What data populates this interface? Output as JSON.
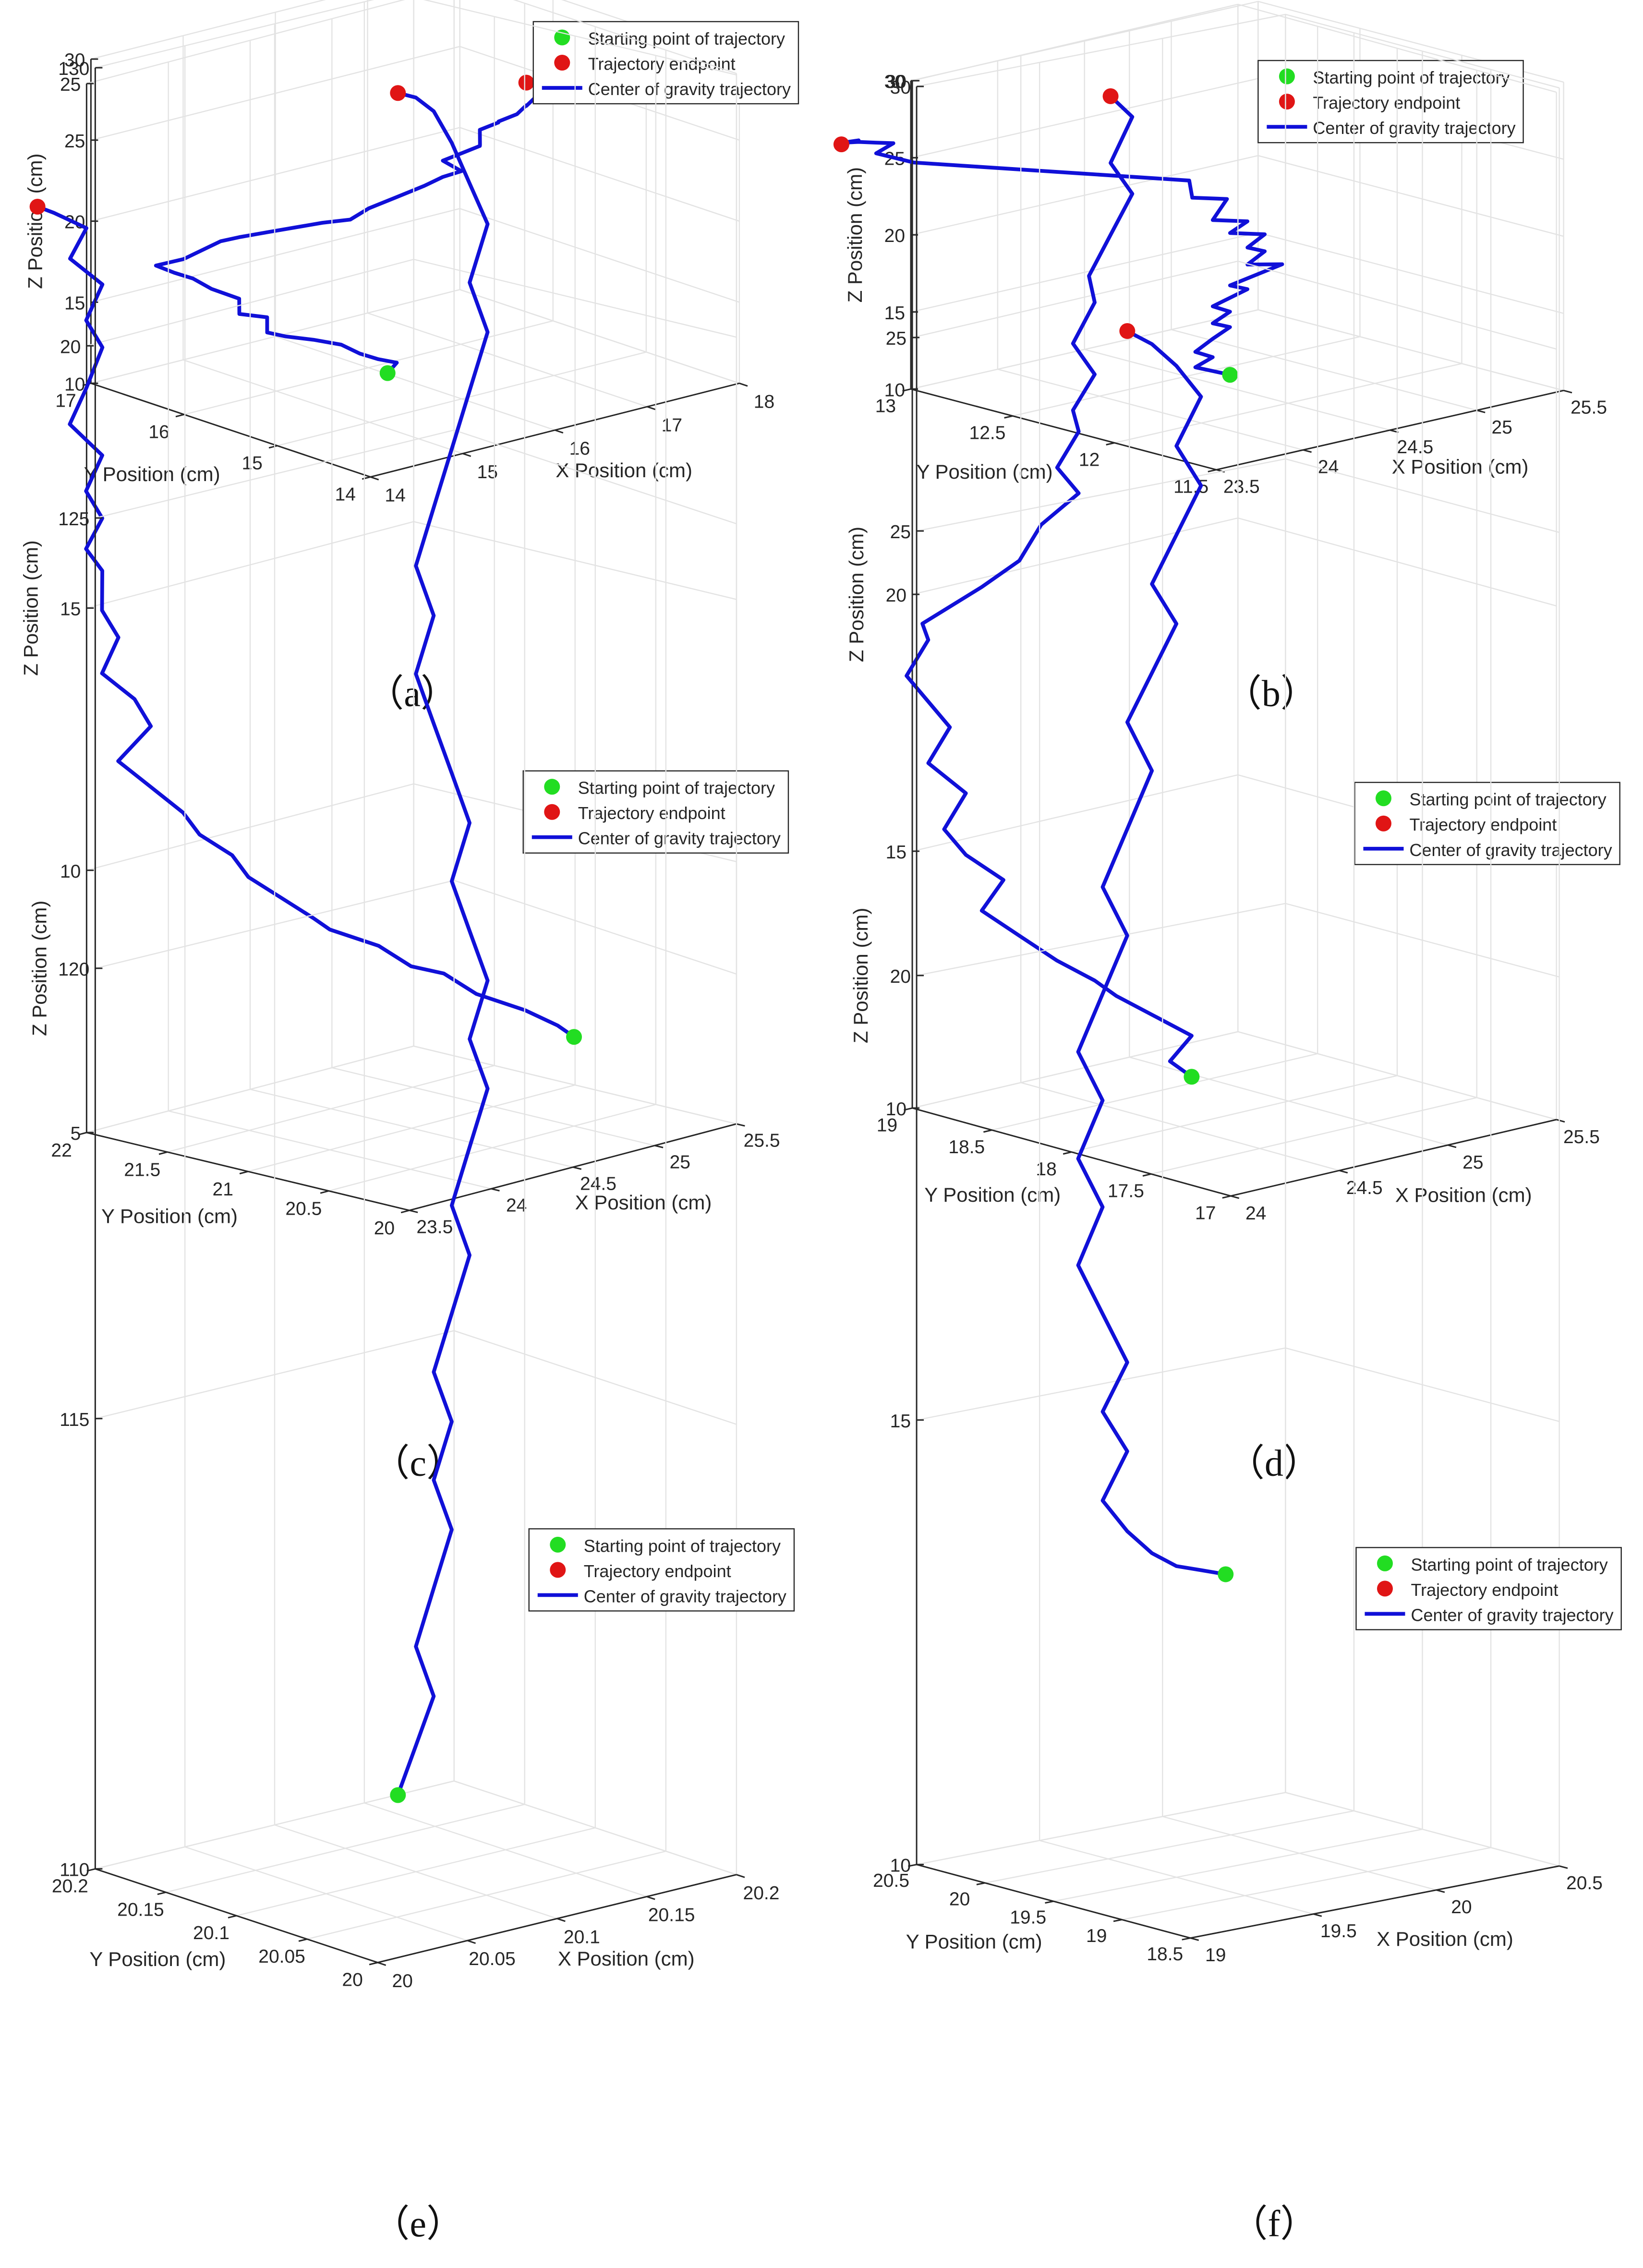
{
  "figure": {
    "colors": {
      "line": "#1010d8",
      "start": "#22dd22",
      "end": "#e01515",
      "axis": "#262626",
      "grid": "#e3e3e3"
    },
    "legend": {
      "start": "Starting point of trajectory",
      "end": "Trajectory endpoint",
      "line": "Center of gravity trajectory",
      "placement": "top-right"
    }
  },
  "chart_data": [
    {
      "type": "line3d",
      "caption": "（a）",
      "xlabel": "X Position (cm)",
      "ylabel": "Y Position (cm)",
      "zlabel": "Z Position (cm)",
      "xlim": [
        14,
        18
      ],
      "ylim": [
        14,
        17
      ],
      "zlim": [
        10,
        30
      ],
      "xticks": [
        "14",
        "15",
        "16",
        "17",
        "18"
      ],
      "yticks": [
        "14",
        "15",
        "16",
        "17"
      ],
      "zticks": [
        "10",
        "15",
        "20",
        "25",
        "30"
      ],
      "series": [
        {
          "name": "Center of gravity trajectory",
          "x": [
            15.6,
            15.7,
            15.5,
            15.4,
            15.3,
            15.1,
            14.9,
            14.8,
            14.9,
            14.7,
            14.8,
            14.6,
            14.5,
            14.4,
            14.3,
            14.5,
            14.6,
            14.7,
            14.8,
            15.0,
            15.2,
            15.4,
            15.6,
            15.8,
            16.0,
            16.2,
            16.3,
            16.4,
            16.3,
            16.4,
            16.5,
            16.4,
            16.5,
            16.6,
            16.5,
            16.6,
            16.7,
            16.6,
            16.7,
            16.8,
            16.7
          ],
          "y": [
            15.4,
            15.4,
            15.4,
            15.5,
            15.6,
            15.7,
            15.8,
            15.9,
            16.0,
            16.1,
            16.2,
            16.3,
            16.4,
            16.5,
            16.6,
            16.5,
            16.4,
            16.3,
            16.2,
            16.1,
            16.0,
            15.9,
            15.8,
            15.8,
            15.7,
            15.6,
            15.5,
            15.4,
            15.5,
            15.4,
            15.3,
            15.2,
            15.3,
            15.2,
            15.1,
            15.0,
            15.0,
            14.9,
            14.9,
            15.0,
            15.0
          ],
          "z": [
            11.4,
            11.9,
            12.4,
            12.7,
            13.2,
            13.6,
            13.9,
            14.1,
            14.7,
            15.0,
            15.6,
            16.3,
            16.9,
            17.2,
            17.6,
            17.9,
            18.5,
            19.1,
            19.4,
            19.6,
            19.8,
            20.0,
            20.1,
            20.5,
            21.1,
            21.7,
            22.3,
            22.7,
            23.3,
            23.8,
            24.3,
            24.7,
            25.3,
            25.8,
            26.2,
            26.7,
            27.1,
            27.4,
            27.8,
            28.1,
            28.5
          ]
        }
      ],
      "start": {
        "x": 15.6,
        "y": 15.4,
        "z": 11.4
      },
      "end": {
        "x": 16.7,
        "y": 15.0,
        "z": 28.5
      }
    },
    {
      "type": "line3d",
      "caption": "（b）",
      "xlabel": "X Position (cm)",
      "ylabel": "Y Position (cm)",
      "zlabel": "Z Position (cm)",
      "xlim": [
        23.5,
        25.5
      ],
      "ylim": [
        11.5,
        13
      ],
      "zlim": [
        10,
        30
      ],
      "xticks": [
        "23.5",
        "24",
        "24.5",
        "25",
        "25.5"
      ],
      "yticks": [
        "11.5",
        "12",
        "12.5",
        "13"
      ],
      "zticks": [
        "10",
        "15",
        "20",
        "25",
        "30"
      ],
      "series": [
        {
          "name": "Center of gravity trajectory",
          "x": [
            24.4,
            24.3,
            24.2,
            24.3,
            24.2,
            24.3,
            24.4,
            24.3,
            24.4,
            24.3,
            24.5,
            24.4,
            24.7,
            24.5,
            24.6,
            24.5,
            24.6,
            24.4,
            24.5,
            24.3,
            24.5,
            24.3,
            24.4,
            24.2,
            24.0,
            23.8,
            23.6,
            23.4,
            23.3,
            23.4,
            23.3,
            23.2,
            23.1,
            23.2,
            23.1
          ],
          "y": [
            12.2,
            12.2,
            12.2,
            12.2,
            12.2,
            12.2,
            12.2,
            12.2,
            12.2,
            12.2,
            12.2,
            12.2,
            12.2,
            12.2,
            12.2,
            12.2,
            12.2,
            12.2,
            12.2,
            12.2,
            12.3,
            12.3,
            12.4,
            12.5,
            12.6,
            12.7,
            12.8,
            12.9,
            13.0,
            13.0,
            13.0,
            13.0,
            13.0,
            13.0,
            13.0
          ],
          "z": [
            11.4,
            11.9,
            12.4,
            12.8,
            13.4,
            14.0,
            14.5,
            15.0,
            15.5,
            16.1,
            16.7,
            17.2,
            17.8,
            18.3,
            18.9,
            19.4,
            20.0,
            20.6,
            21.1,
            21.7,
            22.2,
            22.8,
            23.3,
            23.7,
            24.1,
            24.5,
            24.9,
            25.3,
            25.8,
            26.2,
            26.5,
            26.8,
            27.0,
            26.9,
            26.9
          ]
        }
      ],
      "start": {
        "x": 24.4,
        "y": 12.2,
        "z": 11.4
      },
      "end": {
        "x": 23.1,
        "y": 13.0,
        "z": 26.9
      }
    },
    {
      "type": "line3d",
      "caption": "（c）",
      "xlabel": "X Position (cm)",
      "ylabel": "Y Position (cm)",
      "zlabel": "Z Position (cm)",
      "xlim": [
        23.5,
        25.5
      ],
      "ylim": [
        20,
        22
      ],
      "zlim": [
        5,
        25
      ],
      "xticks": [
        "23.5",
        "24",
        "24.5",
        "25",
        "25.5"
      ],
      "yticks": [
        "20",
        "20.5",
        "21",
        "21.5",
        "22"
      ],
      "zticks": [
        "5",
        "10",
        "15",
        "20",
        "25"
      ],
      "series": [
        {
          "name": "Center of gravity trajectory",
          "x": [
            25.0,
            24.9,
            24.8,
            24.6,
            24.5,
            24.3,
            24.2,
            24.0,
            23.9,
            23.8,
            23.7,
            23.6,
            23.5,
            23.4,
            23.3,
            23.2,
            23.4,
            23.3,
            23.2,
            23.3,
            23.2,
            23.3,
            23.2,
            23.3,
            23.2,
            23.3,
            23.2,
            23.3,
            23.4,
            23.3,
            23.4,
            23.3,
            23.4,
            23.3,
            23.2
          ],
          "y": [
            20.5,
            20.5,
            20.6,
            20.7,
            20.8,
            20.8,
            20.9,
            21.0,
            21.0,
            21.1,
            21.2,
            21.2,
            21.3,
            21.3,
            21.4,
            21.5,
            21.5,
            21.5,
            21.6,
            21.6,
            21.6,
            21.7,
            21.7,
            21.7,
            21.7,
            21.7,
            21.8,
            21.8,
            21.8,
            21.8,
            21.8,
            21.9,
            21.9,
            22.0,
            22.0
          ],
          "z": [
            6.7,
            7.0,
            7.3,
            7.7,
            8.1,
            8.4,
            8.8,
            9.2,
            9.5,
            9.9,
            10.3,
            10.8,
            11.2,
            11.7,
            12.2,
            12.7,
            13.2,
            13.8,
            14.3,
            14.9,
            15.5,
            16.1,
            16.6,
            17.1,
            17.7,
            18.3,
            18.9,
            19.5,
            20.2,
            20.8,
            21.4,
            21.9,
            22.4,
            22.7,
            22.9
          ]
        }
      ],
      "start": {
        "x": 25.0,
        "y": 20.5,
        "z": 6.7
      },
      "end": {
        "x": 23.2,
        "y": 22.0,
        "z": 22.9
      }
    },
    {
      "type": "line3d",
      "caption": "（d）",
      "xlabel": "X Position (cm)",
      "ylabel": "Y Position (cm)",
      "zlabel": "Z Position (cm)",
      "xlim": [
        24,
        25.5
      ],
      "ylim": [
        17,
        19
      ],
      "zlim": [
        10,
        30
      ],
      "xticks": [
        "24",
        "24.5",
        "25",
        "25.5"
      ],
      "yticks": [
        "17",
        "17.5",
        "18",
        "18.5",
        "19"
      ],
      "zticks": [
        "10",
        "15",
        "20",
        "25",
        "30"
      ],
      "series": [
        {
          "name": "Center of gravity trajectory",
          "x": [
            24.7,
            24.6,
            24.7,
            24.6,
            24.5,
            24.4,
            24.3,
            24.2,
            24.1,
            24.2,
            24.1,
            24.0,
            24.1,
            24.0,
            24.1,
            24.0,
            23.9,
            24.0,
            23.9,
            24.1,
            24.2,
            24.3,
            24.4,
            24.3,
            24.4,
            24.3,
            24.4,
            24.3,
            24.4,
            24.3,
            24.4,
            24.5,
            24.4,
            24.5,
            24.4
          ],
          "y": [
            18.2,
            18.2,
            18.2,
            18.3,
            18.4,
            18.4,
            18.5,
            18.6,
            18.7,
            18.7,
            18.8,
            18.8,
            18.8,
            18.9,
            18.9,
            18.9,
            18.9,
            18.9,
            18.8,
            18.7,
            18.6,
            18.6,
            18.5,
            18.5,
            18.5,
            18.4,
            18.4,
            18.4,
            18.4,
            18.3,
            18.3,
            18.3,
            18.3,
            18.3,
            18.3
          ],
          "z": [
            10.6,
            11.0,
            11.4,
            11.8,
            12.2,
            12.6,
            13.0,
            13.5,
            14.0,
            14.5,
            15.0,
            15.6,
            16.2,
            16.8,
            17.4,
            18.0,
            18.6,
            19.2,
            19.7,
            20.3,
            20.8,
            21.4,
            22.0,
            22.6,
            23.2,
            23.8,
            24.4,
            25.1,
            25.8,
            26.5,
            27.2,
            27.9,
            28.6,
            29.4,
            29.9
          ]
        }
      ],
      "start": {
        "x": 24.7,
        "y": 18.2,
        "z": 10.6
      },
      "end": {
        "x": 24.4,
        "y": 18.3,
        "z": 29.9
      }
    },
    {
      "type": "line3d",
      "caption": "（e）",
      "xlabel": "X Position (cm)",
      "ylabel": "Y Position (cm)",
      "zlabel": "Z Position (cm)",
      "xlim": [
        20,
        20.2
      ],
      "ylim": [
        20,
        20.2
      ],
      "zlim": [
        110,
        130
      ],
      "xticks": [
        "20",
        "20.05",
        "20.1",
        "20.15",
        "20.2"
      ],
      "yticks": [
        "20",
        "20.05",
        "20.1",
        "20.15",
        "20.2"
      ],
      "zticks": [
        "110",
        "115",
        "120",
        "125",
        "130"
      ],
      "series": [
        {
          "name": "Center of gravity trajectory",
          "x": [
            20.09,
            20.1,
            20.11,
            20.1,
            20.11,
            20.12,
            20.11,
            20.12,
            20.11,
            20.12,
            20.13,
            20.12,
            20.13,
            20.14,
            20.13,
            20.14,
            20.13,
            20.12,
            20.13,
            20.12,
            20.11,
            20.1,
            20.11,
            20.1,
            20.11,
            20.12,
            20.13,
            20.14,
            20.13,
            20.14,
            20.13,
            20.12,
            20.11,
            20.1,
            20.09
          ],
          "y": [
            20.1,
            20.1,
            20.1,
            20.1,
            20.1,
            20.1,
            20.1,
            20.1,
            20.1,
            20.1,
            20.1,
            20.1,
            20.1,
            20.1,
            20.1,
            20.1,
            20.1,
            20.1,
            20.1,
            20.1,
            20.1,
            20.1,
            20.1,
            20.1,
            20.1,
            20.1,
            20.1,
            20.1,
            20.1,
            20.1,
            20.1,
            20.1,
            20.1,
            20.1,
            20.1
          ],
          "z": [
            110.9,
            111.4,
            111.9,
            112.5,
            113.1,
            113.7,
            114.3,
            114.9,
            115.5,
            116.1,
            116.7,
            117.3,
            117.9,
            118.5,
            119.1,
            119.7,
            120.3,
            120.9,
            121.5,
            122.1,
            122.7,
            123.3,
            123.9,
            124.5,
            125.1,
            125.7,
            126.3,
            126.9,
            127.5,
            128.1,
            128.6,
            129.1,
            129.5,
            129.7,
            129.8
          ]
        }
      ],
      "start": {
        "x": 20.09,
        "y": 20.1,
        "z": 110.9
      },
      "end": {
        "x": 20.09,
        "y": 20.1,
        "z": 129.8
      }
    },
    {
      "type": "line3d",
      "caption": "（f）",
      "xlabel": "X Position (cm)",
      "ylabel": "Y Position (cm)",
      "zlabel": "Z Position (cm)",
      "xlim": [
        19,
        20.5
      ],
      "ylim": [
        18.5,
        20.5
      ],
      "zlim": [
        10,
        30
      ],
      "xticks": [
        "19",
        "19.5",
        "20",
        "20.5"
      ],
      "yticks": [
        "18.5",
        "19",
        "19.5",
        "20",
        "20.5"
      ],
      "zticks": [
        "10",
        "15",
        "20",
        "25",
        "30"
      ],
      "series": [
        {
          "name": "Center of gravity trajectory",
          "x": [
            19.7,
            19.6,
            19.5,
            19.4,
            19.3,
            19.2,
            19.3,
            19.2,
            19.3,
            19.2,
            19.1,
            19.2,
            19.1,
            19.2,
            19.1,
            19.2,
            19.3,
            19.2,
            19.3,
            19.4,
            19.3,
            19.4,
            19.5,
            19.4,
            19.5,
            19.6,
            19.5,
            19.6,
            19.5,
            19.4,
            19.3
          ],
          "y": [
            19.5,
            19.5,
            19.5,
            19.5,
            19.5,
            19.5,
            19.5,
            19.5,
            19.5,
            19.5,
            19.5,
            19.5,
            19.5,
            19.5,
            19.5,
            19.5,
            19.5,
            19.5,
            19.5,
            19.5,
            19.5,
            19.5,
            19.5,
            19.5,
            19.5,
            19.5,
            19.5,
            19.5,
            19.5,
            19.5,
            19.5
          ],
          "z": [
            13.3,
            13.4,
            13.5,
            13.7,
            14.0,
            14.4,
            14.9,
            15.4,
            15.9,
            16.5,
            17.1,
            17.7,
            18.3,
            18.9,
            19.5,
            20.1,
            20.7,
            21.3,
            21.9,
            22.5,
            23.1,
            23.6,
            24.1,
            24.6,
            25.1,
            25.6,
            26.1,
            26.6,
            27.0,
            27.3,
            27.5
          ]
        }
      ],
      "start": {
        "x": 19.7,
        "y": 19.5,
        "z": 13.3
      },
      "end": {
        "x": 19.3,
        "y": 19.5,
        "z": 27.5
      }
    }
  ]
}
